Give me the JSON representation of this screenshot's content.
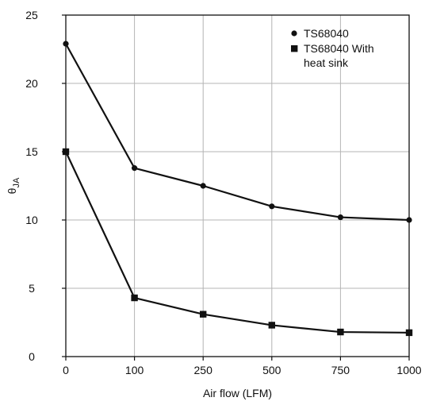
{
  "chart_data": {
    "type": "line",
    "categories": [
      "0",
      "100",
      "250",
      "500",
      "750",
      "1000"
    ],
    "series": [
      {
        "name": "TS68040",
        "marker": "circle",
        "values": [
          22.9,
          13.8,
          12.5,
          11.0,
          10.2,
          10.0
        ]
      },
      {
        "name": "TS68040 With heat sink",
        "name_lines": [
          "TS68040 With",
          "heat sink"
        ],
        "marker": "square",
        "values": [
          15.0,
          4.3,
          3.1,
          2.3,
          1.8,
          1.75
        ]
      }
    ],
    "xlabel": "Air flow (LFM)",
    "ylabel_main": "θ",
    "ylabel_sub": "JA",
    "ylim": [
      0,
      25
    ],
    "yticks": [
      "0",
      "5",
      "10",
      "15",
      "20",
      "25"
    ],
    "grid": true,
    "legend_position": "top-right",
    "colors": {
      "line": "#111111",
      "grid": "#b4b4b4",
      "axis": "#111111"
    }
  }
}
